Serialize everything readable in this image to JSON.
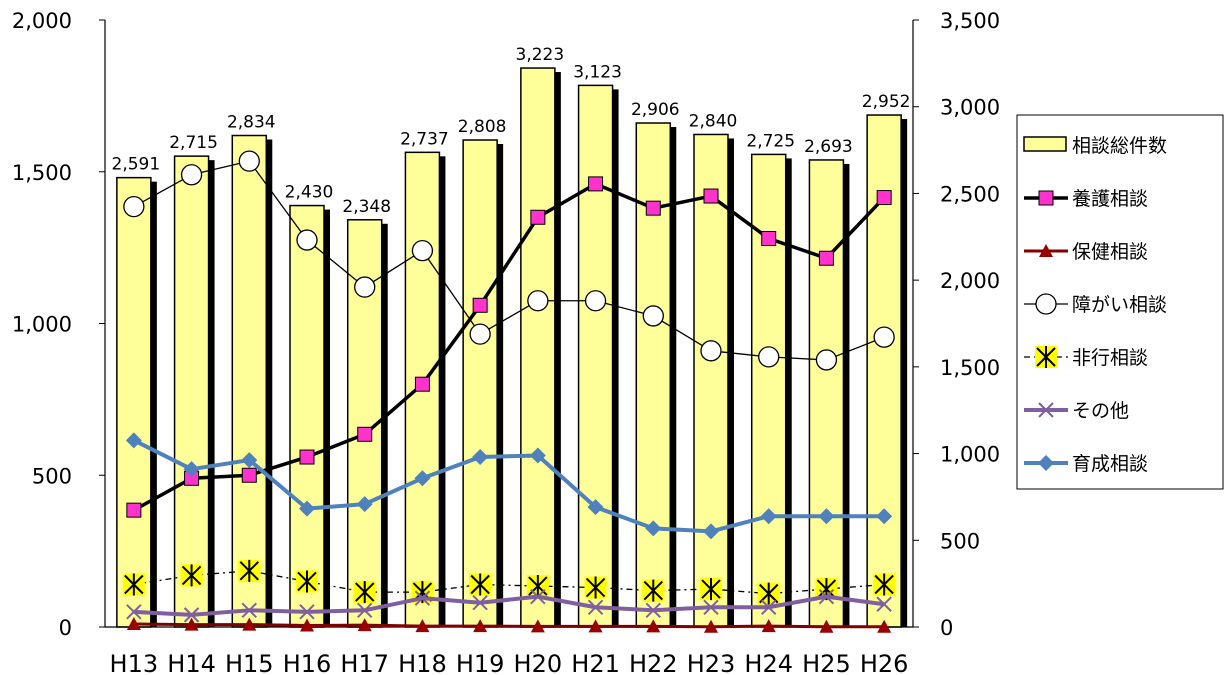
{
  "chart_data": {
    "type": "bar+line",
    "categories": [
      "H13",
      "H14",
      "H15",
      "H16",
      "H17",
      "H18",
      "H19",
      "H20",
      "H21",
      "H22",
      "H23",
      "H24",
      "H25",
      "H26"
    ],
    "left_axis": {
      "ylim": [
        0,
        2000
      ],
      "ticks": [
        0,
        500,
        1000,
        1500,
        2000
      ],
      "tick_labels": [
        "0",
        "500",
        "1,000",
        "1,500",
        "2,000"
      ]
    },
    "right_axis": {
      "ylim": [
        0,
        3500
      ],
      "ticks": [
        0,
        500,
        1000,
        1500,
        2000,
        2500,
        3000,
        3500
      ],
      "tick_labels": [
        "0",
        "500",
        "1,000",
        "1,500",
        "2,000",
        "2,500",
        "3,000",
        "3,500"
      ]
    },
    "series": [
      {
        "name": "相談総件数",
        "kind": "bar",
        "axis": "right",
        "color": "#ffff99",
        "values": [
          2591,
          2715,
          2834,
          2430,
          2348,
          2737,
          2808,
          3223,
          3123,
          2906,
          2840,
          2725,
          2693,
          2952
        ],
        "data_labels": [
          "2,591",
          "2,715",
          "2,834",
          "2,430",
          "2,348",
          "2,737",
          "2,808",
          "3,223",
          "3,123",
          "2,906",
          "2,840",
          "2,725",
          "2,693",
          "2,952"
        ]
      },
      {
        "name": "養護相談",
        "kind": "line",
        "axis": "left",
        "color": "#000000",
        "marker": "square",
        "marker_color": "#ff33cc",
        "values": [
          385,
          490,
          500,
          560,
          635,
          800,
          1060,
          1350,
          1460,
          1380,
          1420,
          1280,
          1215,
          1415
        ]
      },
      {
        "name": "保健相談",
        "kind": "line",
        "axis": "left",
        "color": "#800000",
        "marker": "triangle",
        "marker_color": "#990000",
        "values": [
          10,
          8,
          8,
          5,
          6,
          3,
          3,
          2,
          2,
          2,
          1,
          3,
          1,
          1
        ]
      },
      {
        "name": "障がい相談",
        "kind": "line",
        "axis": "left",
        "color": "#000000",
        "marker": "circle",
        "marker_color": "#ffffff",
        "values": [
          1385,
          1490,
          1535,
          1275,
          1120,
          1240,
          965,
          1075,
          1075,
          1025,
          910,
          890,
          880,
          955
        ]
      },
      {
        "name": "非行相談",
        "kind": "line",
        "axis": "left",
        "color": "#000000",
        "marker": "asterisk",
        "marker_color": "#ffff00",
        "values": [
          140,
          170,
          185,
          150,
          115,
          115,
          140,
          135,
          130,
          120,
          125,
          110,
          125,
          140
        ]
      },
      {
        "name": "その他",
        "kind": "line",
        "axis": "left",
        "color": "#7f5fa0",
        "marker": "x",
        "marker_color": "#7f5fa0",
        "values": [
          50,
          40,
          55,
          50,
          55,
          95,
          80,
          100,
          65,
          55,
          65,
          65,
          100,
          75
        ]
      },
      {
        "name": "育成相談",
        "kind": "line",
        "axis": "left",
        "color": "#4f81bd",
        "marker": "diamond",
        "marker_color": "#4f81bd",
        "values": [
          615,
          520,
          550,
          390,
          405,
          490,
          560,
          565,
          395,
          325,
          315,
          365,
          365,
          365
        ]
      }
    ],
    "legend_position": "right",
    "grid": false
  }
}
